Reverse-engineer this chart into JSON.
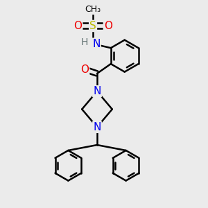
{
  "bg_color": "#ebebeb",
  "atom_colors": {
    "C": "#000000",
    "N": "#0000ee",
    "O": "#ee0000",
    "S": "#bbbb00",
    "H": "#607070"
  },
  "bond_color": "#000000",
  "bond_width": 1.8,
  "figsize": [
    3.0,
    3.0
  ],
  "dpi": 100,
  "xlim": [
    -2.5,
    2.5
  ],
  "ylim": [
    -4.5,
    3.0
  ]
}
